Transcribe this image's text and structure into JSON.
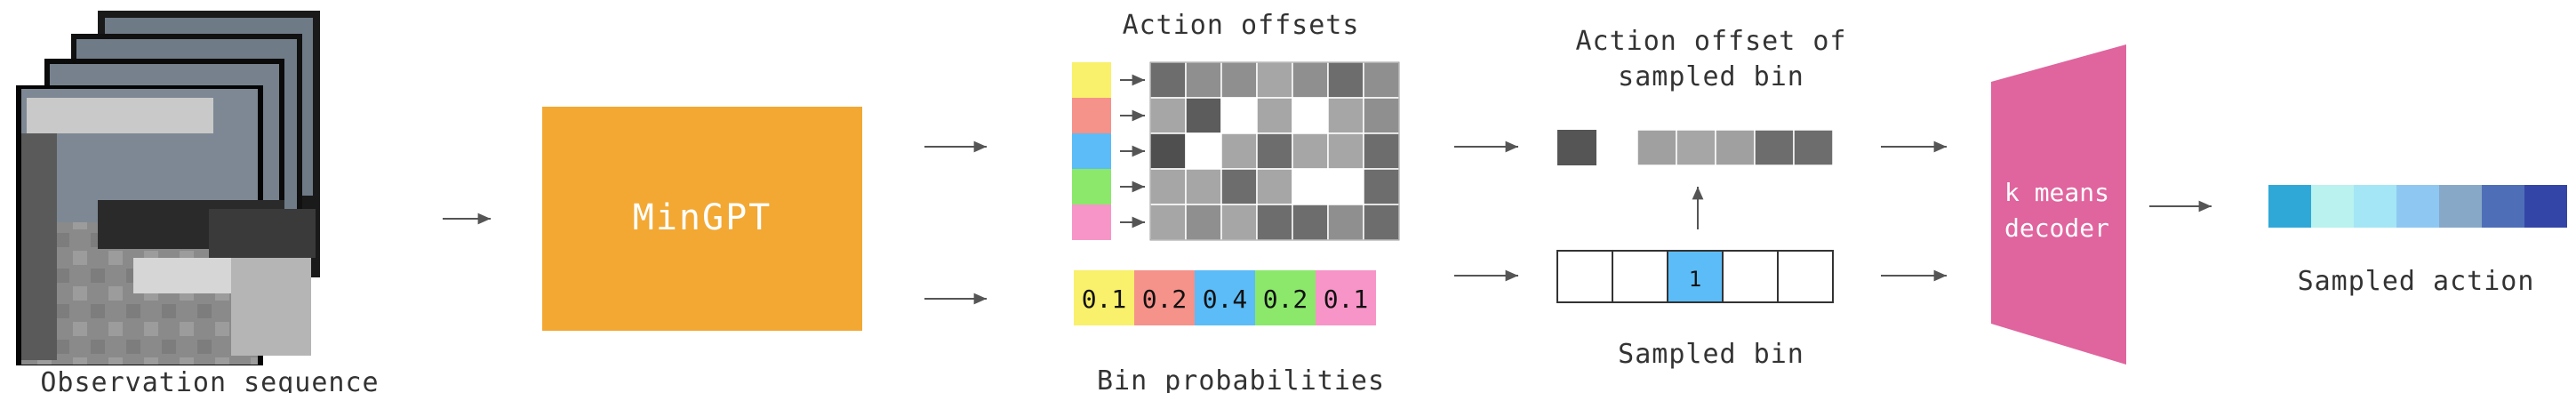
{
  "labels": {
    "observation_sequence": "Observation sequence",
    "mingpt": "MinGPT",
    "action_offsets": "Action offsets",
    "bin_probabilities": "Bin probabilities",
    "action_offset_of_sampled_bin_line1": "Action offset of",
    "action_offset_of_sampled_bin_line2": "sampled bin",
    "sampled_bin": "Sampled bin",
    "sampled_bin_index": "1",
    "decoder_line1": "k means",
    "decoder_line2": "decoder",
    "sampled_action": "Sampled action"
  },
  "bin_probabilities": [
    "0.1",
    "0.2",
    "0.4",
    "0.2",
    "0.1"
  ],
  "colors": {
    "mingpt_fill": "#f2a833",
    "decoder_fill": "#e0649e",
    "bins": [
      "#f9f06b",
      "#f5928a",
      "#5bbcf7",
      "#8be86b",
      "#f795c8"
    ],
    "selected_bin": "#5bbcf7",
    "offset_grid": [
      [
        "#6d6d6d",
        "#8f8f8f",
        "#8f8f8f",
        "#a6a6a6",
        "#8f8f8f",
        "#6d6d6d",
        "#8f8f8f"
      ],
      [
        "#a6a6a6",
        "#5c5c5c",
        "#ffffff",
        "#a6a6a6",
        "#ffffff",
        "#a6a6a6",
        "#8f8f8f"
      ],
      [
        "#4f4f4f",
        "#ffffff",
        "#a6a6a6",
        "#6d6d6d",
        "#a6a6a6",
        "#a6a6a6",
        "#6d6d6d"
      ],
      [
        "#a6a6a6",
        "#a6a6a6",
        "#6d6d6d",
        "#a6a6a6",
        "#ffffff",
        "#ffffff",
        "#6d6d6d"
      ],
      [
        "#a6a6a6",
        "#8f8f8f",
        "#a6a6a6",
        "#6d6d6d",
        "#6d6d6d",
        "#8f8f8f",
        "#6d6d6d"
      ]
    ],
    "offset_single": "#555555",
    "offset_row": [
      "#a0a0a0",
      "#a6a6a6",
      "#a0a0a0",
      "#6d6d6d",
      "#6d6d6d"
    ],
    "sampled_action": [
      "#2fa8d8",
      "#b9f2ef",
      "#a4e6f5",
      "#8ec8f2",
      "#88a8c8",
      "#4e6fb8",
      "#3445a8"
    ]
  },
  "icons": {
    "arrow": "arrow-right-icon"
  }
}
